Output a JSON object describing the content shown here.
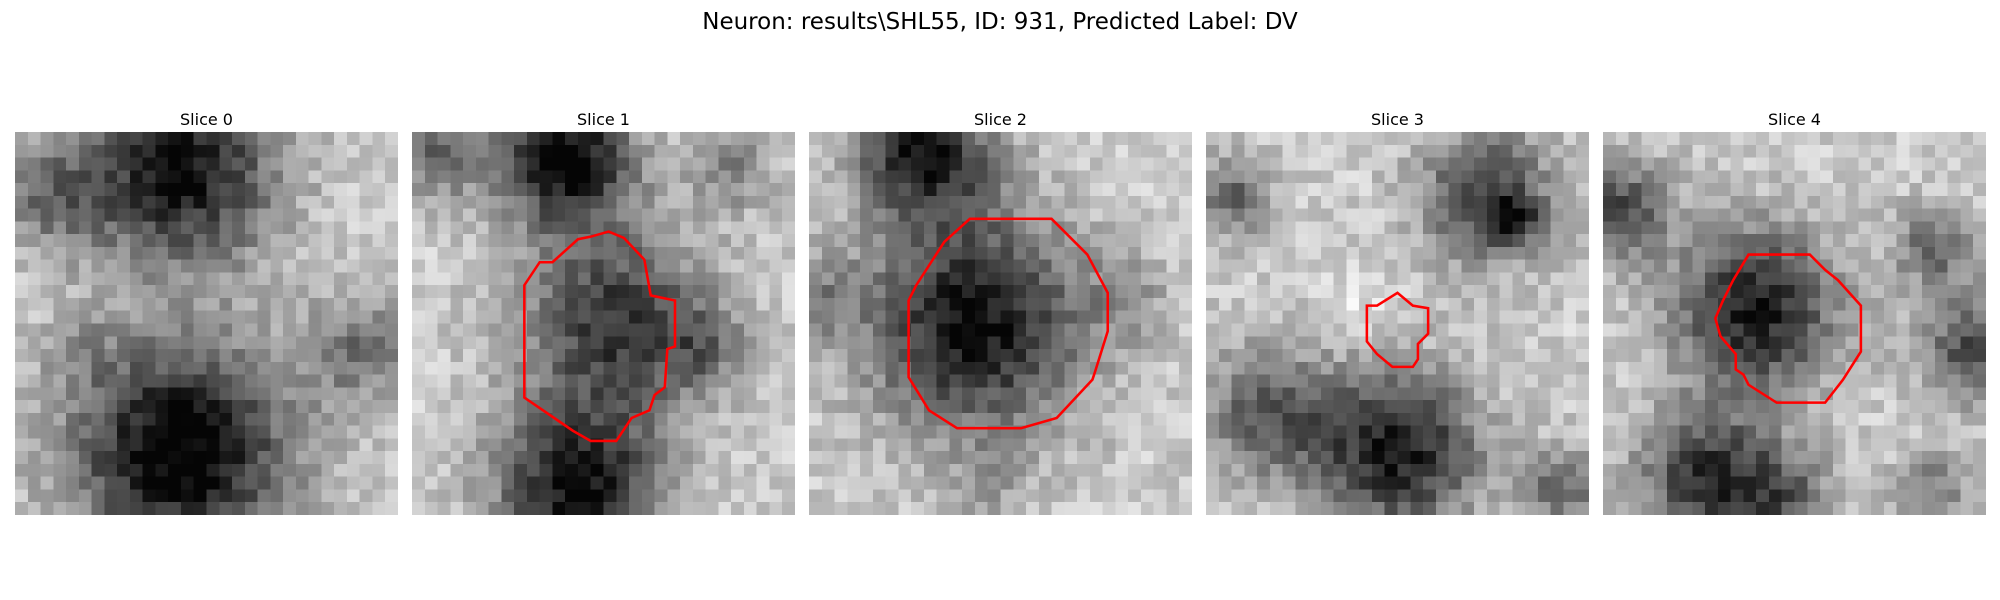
{
  "figure": {
    "title": "Neuron: results\\SHL55, ID: 931, Predicted Label: DV",
    "colors": {
      "contour": "#ff0000",
      "colormap": "gray"
    }
  },
  "slices": [
    {
      "title": "Slice 0",
      "has_contour": false
    },
    {
      "title": "Slice 1",
      "has_contour": true
    },
    {
      "title": "Slice 2",
      "has_contour": true
    },
    {
      "title": "Slice 3",
      "has_contour": true
    },
    {
      "title": "Slice 4",
      "has_contour": true
    }
  ]
}
